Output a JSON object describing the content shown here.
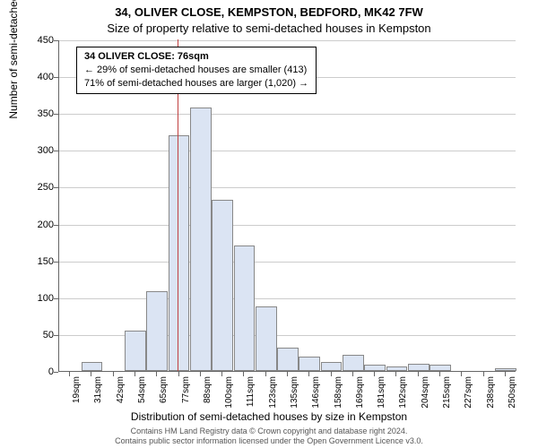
{
  "title_main": "34, OLIVER CLOSE, KEMPSTON, BEDFORD, MK42 7FW",
  "title_sub": "Size of property relative to semi-detached houses in Kempston",
  "y_axis_label": "Number of semi-detached properties",
  "x_axis_label": "Distribution of semi-detached houses by size in Kempston",
  "attribution_line1": "Contains HM Land Registry data © Crown copyright and database right 2024.",
  "attribution_line2": "Contains public sector information licensed under the Open Government Licence v3.0.",
  "info_box": {
    "line1": "34 OLIVER CLOSE: 76sqm",
    "line2": "← 29% of semi-detached houses are smaller (413)",
    "line3": "71% of semi-detached houses are larger (1,020) →"
  },
  "chart": {
    "type": "histogram",
    "ylim": [
      0,
      450
    ],
    "ytick_step": 50,
    "yticks": [
      0,
      50,
      100,
      150,
      200,
      250,
      300,
      350,
      400,
      450
    ],
    "x_categories": [
      "19sqm",
      "31sqm",
      "42sqm",
      "54sqm",
      "65sqm",
      "77sqm",
      "88sqm",
      "100sqm",
      "111sqm",
      "123sqm",
      "135sqm",
      "146sqm",
      "158sqm",
      "169sqm",
      "181sqm",
      "192sqm",
      "204sqm",
      "215sqm",
      "227sqm",
      "238sqm",
      "250sqm"
    ],
    "values": [
      0,
      12,
      0,
      55,
      108,
      320,
      358,
      232,
      170,
      88,
      32,
      20,
      12,
      22,
      8,
      6,
      10,
      8,
      0,
      0,
      4
    ],
    "bar_fill_color": "#dbe4f3",
    "bar_border_color": "#888888",
    "background_color": "#ffffff",
    "grid_color": "#cccccc",
    "axis_color": "#666666",
    "marker_color": "#c04040",
    "marker_x_value": "76sqm",
    "title_fontsize": 13,
    "label_fontsize": 12,
    "tick_fontsize": 11
  }
}
